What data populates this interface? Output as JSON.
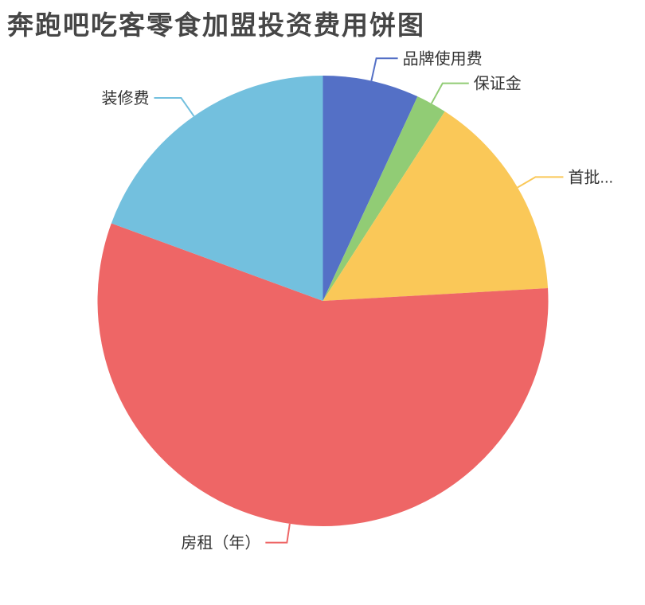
{
  "title": "奔跑吧吃客零食加盟投资费用饼图",
  "chart_data": {
    "type": "pie",
    "title": "奔跑吧吃客零食加盟投资费用饼图",
    "legend": "none",
    "values_shown": false,
    "start_angle": "12-o-clock-clockwise",
    "background": "#ffffff",
    "title_color": "#464646",
    "label_color": "#333333",
    "slices": [
      {
        "id": "brand-usage-fee",
        "label": "品牌使用费",
        "percent": 6.9,
        "color": "#5470c6",
        "label_line": {
          "len1": 29,
          "len2": 27
        }
      },
      {
        "id": "deposit",
        "label": "保证金",
        "percent": 2.2,
        "color": "#91cc75",
        "label_line": {
          "len1": 29,
          "len2": 33
        }
      },
      {
        "id": "first-batch",
        "label": "首批...",
        "percent": 15.0,
        "color": "#fac858",
        "label_line": {
          "len1": 26,
          "len2": 35
        }
      },
      {
        "id": "annual-rent",
        "label": "房租（年）",
        "percent": 56.5,
        "color": "#ee6666",
        "label_line": {
          "len1": 24,
          "len2": 27
        }
      },
      {
        "id": "renovation-fee",
        "label": "装修费",
        "percent": 19.4,
        "color": "#73c0de",
        "label_line": {
          "len1": 28,
          "len2": 34
        }
      }
    ]
  }
}
